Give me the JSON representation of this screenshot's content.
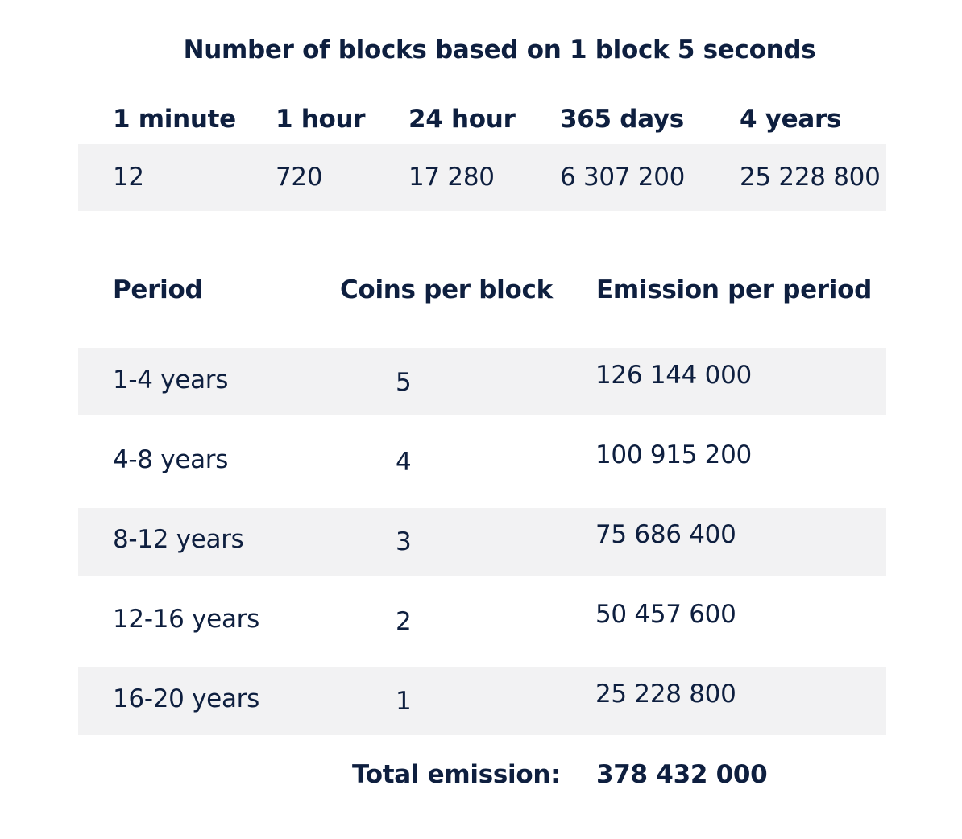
{
  "blocks_table": {
    "title": "Number of blocks based on 1 block 5 seconds",
    "headers": [
      "1 minute",
      "1 hour",
      "24 hour",
      "365 days",
      "4 years"
    ],
    "values": [
      "12",
      "720",
      "17 280",
      "6 307 200",
      "25 228 800"
    ]
  },
  "emission_table": {
    "headers": [
      "Period",
      "Coins per block",
      "Emission per period"
    ],
    "rows": [
      {
        "period": "1-4 years",
        "coins": "5",
        "emission": "126 144 000"
      },
      {
        "period": "4-8 years",
        "coins": "4",
        "emission": "100 915 200"
      },
      {
        "period": "8-12 years",
        "coins": "3",
        "emission": "75 686 400"
      },
      {
        "period": "12-16 years",
        "coins": "2",
        "emission": "50 457 600"
      },
      {
        "period": "16-20 years",
        "coins": "1",
        "emission": "25 228 800"
      }
    ],
    "total_label": "Total emission:",
    "total_value": "378 432 000"
  },
  "colors": {
    "text": "#0e1f3f",
    "band": "#f2f2f3",
    "background": "#ffffff"
  }
}
